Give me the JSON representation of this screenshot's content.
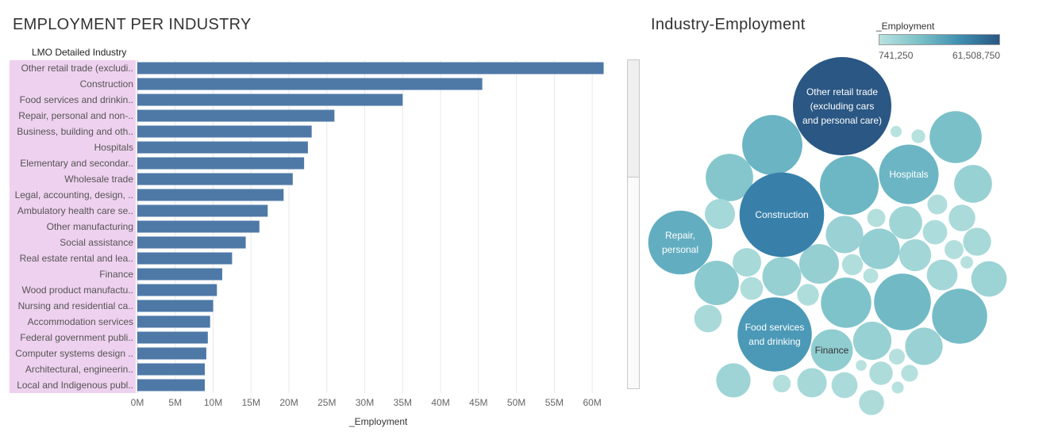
{
  "bar_title": "EMPLOYMENT PER INDUSTRY",
  "bubble_title": "Industry-Employment",
  "dimension_header": "LMO Detailed Industry",
  "x_axis_title": "_Employment",
  "legend": {
    "title": "_Employment",
    "min_label": "741,250",
    "max_label": "61,508,750"
  },
  "colors": {
    "bar": "#4e79a7",
    "label_highlight": "#eed1ef",
    "ramp_low": "#b8e2df",
    "ramp_high": "#2a5783"
  },
  "chart_data": [
    {
      "type": "bar",
      "orientation": "horizontal",
      "title": "EMPLOYMENT PER INDUSTRY",
      "ylabel": "LMO Detailed Industry",
      "xlabel": "_Employment",
      "categories": [
        "Other retail trade (excludi..",
        "Construction",
        "Food services and drinkin..",
        "Repair, personal and non-..",
        "Business, building and oth..",
        "Hospitals",
        "Elementary and secondar..",
        "Wholesale trade",
        "Legal, accounting, design, ..",
        "Ambulatory health care se..",
        "Other manufacturing",
        "Social assistance",
        "Real estate rental and lea..",
        "Finance",
        "Wood product manufactu..",
        "Nursing and residential ca..",
        "Accommodation services",
        "Federal government publi..",
        "Computer systems design ..",
        "Architectural, engineerin..",
        "Local and Indigenous publ.."
      ],
      "values": [
        61508750,
        45500000,
        35000000,
        26000000,
        23000000,
        22500000,
        22000000,
        20500000,
        19300000,
        17200000,
        16100000,
        14300000,
        12500000,
        11200000,
        10500000,
        10000000,
        9600000,
        9300000,
        9100000,
        8900000,
        8900000
      ],
      "xticks": [
        "0M",
        "5M",
        "10M",
        "15M",
        "20M",
        "25M",
        "30M",
        "35M",
        "40M",
        "45M",
        "50M",
        "55M",
        "60M"
      ],
      "xlim": [
        0,
        62500000
      ],
      "grid": true
    },
    {
      "type": "bubble",
      "title": "Industry-Employment",
      "color_by": "_Employment",
      "color_range": [
        741250,
        61508750
      ],
      "labeled_bubbles": [
        {
          "label": "Other retail trade (excluding cars and personal care)",
          "lines": [
            "Other retail trade",
            "(excluding cars",
            "and personal care)"
          ],
          "value": 61508750
        },
        {
          "label": "Construction",
          "lines": [
            "Construction"
          ],
          "value": 45500000
        },
        {
          "label": "Food services and drinking",
          "lines": [
            "Food services",
            "and drinking"
          ],
          "value": 35000000
        },
        {
          "label": "Repair, personal",
          "lines": [
            "Repair,",
            "personal"
          ],
          "value": 26000000
        },
        {
          "label": "Hospitals",
          "lines": [
            "Hospitals"
          ],
          "value": 22500000
        },
        {
          "label": "Finance",
          "lines": [
            "Finance"
          ],
          "value": 11200000
        }
      ],
      "unlabeled_values": [
        23000000,
        22000000,
        20500000,
        19300000,
        17200000,
        16100000,
        14300000,
        12500000,
        10500000,
        10000000,
        9600000,
        9300000,
        9100000,
        8900000,
        8900000,
        8000000,
        7500000,
        7000000,
        6500000,
        6000000,
        5800000,
        5500000,
        5200000,
        5000000,
        4800000,
        4500000,
        4300000,
        4000000,
        3800000,
        3500000,
        3300000,
        3000000,
        2800000,
        2500000,
        2300000,
        2100000,
        2000000,
        1800000,
        1600000,
        1400000,
        1200000,
        1000000,
        900000,
        800000,
        741250
      ]
    }
  ]
}
